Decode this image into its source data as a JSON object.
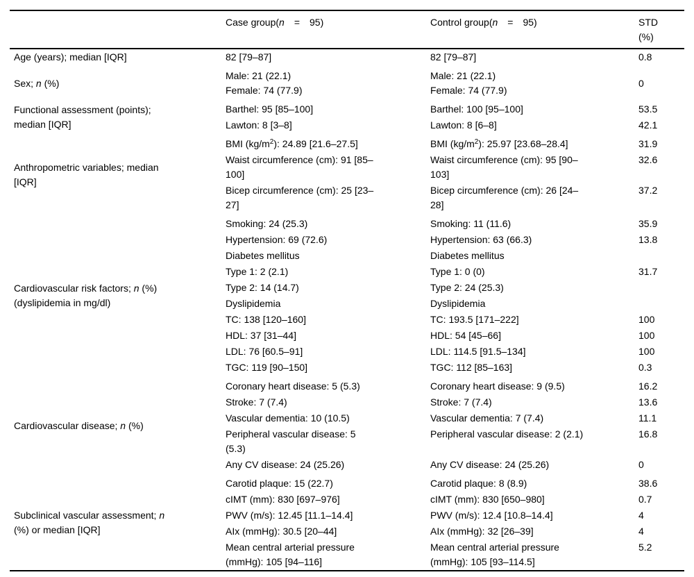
{
  "page": {
    "background": "#ffffff",
    "text_color": "#000000",
    "rule_color": "#000000"
  },
  "table": {
    "header": {
      "label": "",
      "case": "Case group(*n*  =  95)",
      "control": "Control group(*n*  =  95)",
      "std": "STD\n(%)"
    },
    "groups": [
      {
        "label": "Age (years); median [IQR]",
        "rows": [
          {
            "case": "82 [79–87]",
            "control": "82 [79–87]",
            "std": "0.8"
          }
        ]
      },
      {
        "label": "Sex; *n* (%)",
        "rows": [
          {
            "case": "Male: 21 (22.1)\nFemale: 74 (77.9)",
            "control": "Male: 21 (22.1)\nFemale: 74 (77.9)",
            "std": "0",
            "center_std": true
          }
        ]
      },
      {
        "label": "Functional assessment (points);\nmedian [IQR]",
        "rows": [
          {
            "case": "Barthel: 95 [85–100]",
            "control": "Barthel: 100 [95–100]",
            "std": "53.5"
          },
          {
            "case": "Lawton: 8 [3–8]",
            "control": "Lawton: 8 [6–8]",
            "std": "42.1"
          }
        ]
      },
      {
        "label": "Anthropometric variables; median\n[IQR]",
        "rows": [
          {
            "case": "BMI (kg/m^2^): 24.89 [21.6–27.5]",
            "control": "BMI (kg/m^2^): 25.97 [23.68–28.4]",
            "std": "31.9"
          },
          {
            "case": "Waist circumference (cm): 91 [85–\n100]",
            "control": "Waist circumference (cm): 95 [90–\n103]",
            "std": "32.6"
          },
          {
            "case": "Bicep circumference (cm): 25 [23–\n27]",
            "control": "Bicep circumference (cm): 26 [24–\n28]",
            "std": "37.2"
          }
        ]
      },
      {
        "label": "Cardiovascular risk factors; *n* (%)\n(dyslipidemia in mg/dl)",
        "rows": [
          {
            "case": "Smoking: 24 (25.3)",
            "control": "Smoking: 11 (11.6)",
            "std": "35.9"
          },
          {
            "case": "Hypertension: 69 (72.6)",
            "control": "Hypertension: 63 (66.3)",
            "std": "13.8"
          },
          {
            "case": "Diabetes mellitus",
            "control": "Diabetes mellitus",
            "std": ""
          },
          {
            "case": "Type 1: 2 (2.1)",
            "control": "Type 1: 0 (0)",
            "std": "31.7"
          },
          {
            "case": "Type 2: 14 (14.7)",
            "control": "Type 2: 24 (25.3)",
            "std": ""
          },
          {
            "case": "Dyslipidemia",
            "control": "Dyslipidemia",
            "std": ""
          },
          {
            "case": "TC: 138 [120–160]",
            "control": "TC: 193.5 [171–222]",
            "std": "100"
          },
          {
            "case": "HDL: 37 [31–44]",
            "control": "HDL: 54 [45–66]",
            "std": "100"
          },
          {
            "case": "LDL: 76 [60.5–91]",
            "control": "LDL: 114.5 [91.5–134]",
            "std": "100"
          },
          {
            "case": "TGC: 119 [90–150]",
            "control": "TGC: 112 [85–163]",
            "std": "0.3"
          }
        ]
      },
      {
        "label": "Cardiovascular disease; *n* (%)",
        "rows": [
          {
            "case": "Coronary heart disease: 5 (5.3)",
            "control": "Coronary heart disease: 9 (9.5)",
            "std": "16.2"
          },
          {
            "case": "Stroke: 7 (7.4)",
            "control": "Stroke: 7 (7.4)",
            "std": "13.6"
          },
          {
            "case": "Vascular dementia: 10 (10.5)",
            "control": "Vascular dementia: 7 (7.4)",
            "std": "11.1"
          },
          {
            "case": "Peripheral vascular disease: 5\n(5.3)",
            "control": "Peripheral vascular disease: 2 (2.1)",
            "std": "16.8"
          },
          {
            "case": "Any CV disease: 24 (25.26)",
            "control": "Any CV disease: 24 (25.26)",
            "std": "0"
          }
        ]
      },
      {
        "label": "Subclinical vascular assessment; *n*\n(%) or median [IQR]",
        "rows": [
          {
            "case": "Carotid plaque: 15 (22.7)",
            "control": "Carotid plaque: 8 (8.9)",
            "std": "38.6"
          },
          {
            "case": "cIMT (mm): 830 [697–976]",
            "control": "cIMT (mm): 830 [650–980]",
            "std": "0.7"
          },
          {
            "case": "PWV (m/s): 12.45 [11.1–14.4]",
            "control": "PWV (m/s): 12.4 [10.8–14.4]",
            "std": "4"
          },
          {
            "case": "AIx (mmHg): 30.5 [20–44]",
            "control": "AIx (mmHg): 32 [26–39]",
            "std": "4"
          },
          {
            "case": "Mean central arterial pressure\n(mmHg): 105 [94–116]",
            "control": "Mean central arterial pressure\n(mmHg): 105 [93–114.5]",
            "std": "5.2"
          }
        ]
      }
    ]
  }
}
